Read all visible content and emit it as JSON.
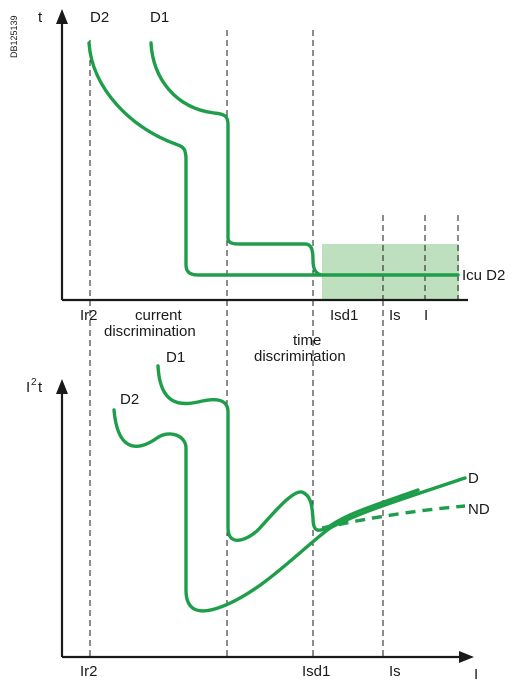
{
  "doc_id": "DB125139",
  "top": {
    "y_axis_label": "t",
    "curve_labels": {
      "d2": "D2",
      "d1": "D1"
    },
    "icu_label": "Icu D2",
    "x_labels": {
      "ir2": "Ir2",
      "isd1": "Isd1",
      "is": "Is",
      "i": "I"
    },
    "region_labels": {
      "current_line1": "current",
      "current_line2": "discrimination",
      "time_line1": "time",
      "time_line2": "discrimination"
    }
  },
  "bottom": {
    "y_axis_label_main": "I",
    "y_axis_label_sup": "2",
    "y_axis_label_tail": "t",
    "curve_labels": {
      "d1": "D1",
      "d2": "D2",
      "d": "D",
      "nd": "ND"
    },
    "x_labels": {
      "ir2": "Ir2",
      "isd1": "Isd1",
      "is": "Is",
      "i": "I"
    }
  },
  "colors": {
    "curve": "#1e9e4a",
    "zone": "#bfe0be",
    "axis": "#1a1a1a"
  }
}
